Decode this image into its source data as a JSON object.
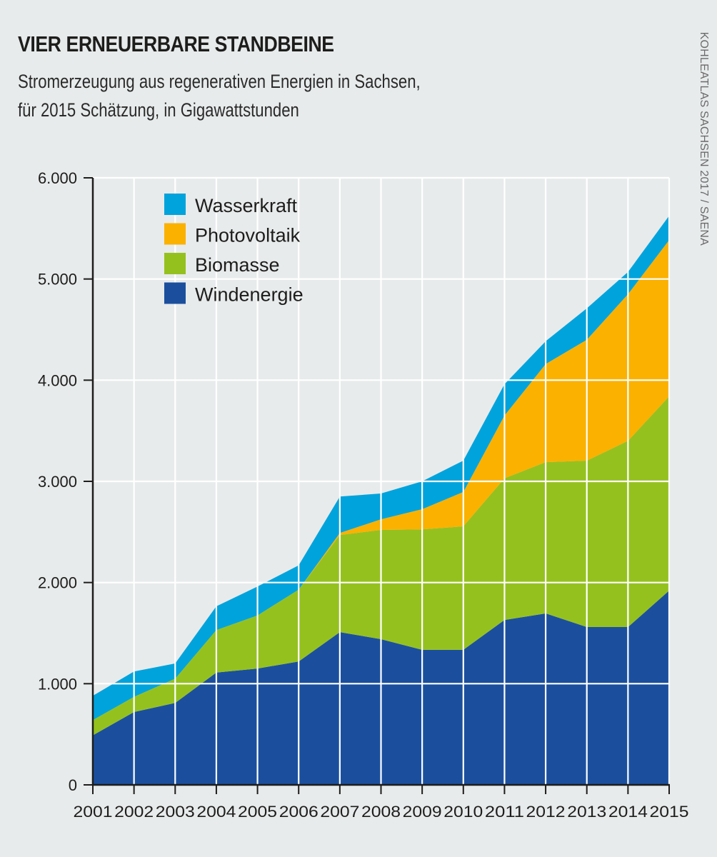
{
  "header": {
    "title": "VIER ERNEUERBARE STANDBEINE",
    "subtitle_line1": "Stromerzeugung aus regenerativen Energien in Sachsen,",
    "subtitle_line2": "für 2015 Schätzung, in Gigawattstunden"
  },
  "source": "KOHLEATLAS SACHSEN 2017 / SAENA",
  "chart_data": {
    "type": "area",
    "stacked": true,
    "title": "VIER ERNEUERBARE STANDBEINE",
    "subtitle": "Stromerzeugung aus regenerativen Energien in Sachsen, für 2015 Schätzung, in Gigawattstunden",
    "xlabel": "",
    "ylabel": "",
    "x": [
      "2001",
      "2002",
      "2003",
      "2004",
      "2005",
      "2006",
      "2007",
      "2008",
      "2009",
      "2010",
      "2011",
      "2012",
      "2013",
      "2014",
      "2015"
    ],
    "ylim": [
      0,
      6000
    ],
    "yticks": [
      0,
      1000,
      2000,
      3000,
      4000,
      5000,
      6000
    ],
    "ytick_labels": [
      "0",
      "1.000",
      "2.000",
      "3.000",
      "4.000",
      "5.000",
      "6.000"
    ],
    "grid": true,
    "legend_position": "top-left",
    "series": [
      {
        "name": "Windenergie",
        "color": "#1b4f9e",
        "values": [
          490,
          720,
          810,
          1110,
          1150,
          1220,
          1510,
          1440,
          1335,
          1335,
          1630,
          1695,
          1560,
          1560,
          1920
        ]
      },
      {
        "name": "Biomasse",
        "color": "#95c11f",
        "values": [
          150,
          150,
          240,
          420,
          525,
          710,
          960,
          1080,
          1190,
          1220,
          1400,
          1495,
          1645,
          1840,
          1920
        ]
      },
      {
        "name": "Photovoltaik",
        "color": "#fbb100",
        "values": [
          0,
          0,
          0,
          0,
          0,
          0,
          20,
          105,
          200,
          340,
          620,
          970,
          1195,
          1450,
          1545
        ]
      },
      {
        "name": "Wasserkraft",
        "color": "#00a3dc",
        "values": [
          240,
          250,
          150,
          235,
          285,
          240,
          360,
          255,
          275,
          310,
          310,
          225,
          310,
          220,
          240
        ]
      }
    ],
    "legend": [
      "Wasserkraft",
      "Photovoltaik",
      "Biomasse",
      "Windenergie"
    ]
  }
}
